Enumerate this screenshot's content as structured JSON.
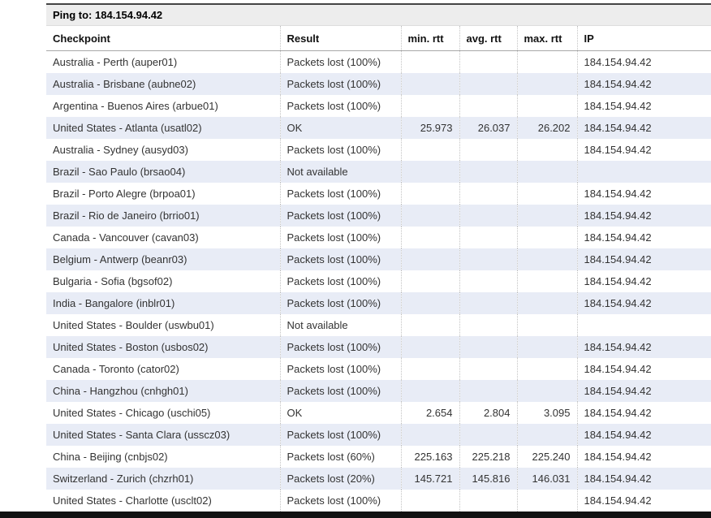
{
  "header": {
    "label": "Ping to:",
    "target": "184.154.94.42"
  },
  "table": {
    "columns": [
      {
        "key": "checkpoint",
        "label": "Checkpoint"
      },
      {
        "key": "result",
        "label": "Result"
      },
      {
        "key": "min",
        "label": "min. rtt"
      },
      {
        "key": "avg",
        "label": "avg. rtt"
      },
      {
        "key": "max",
        "label": "max. rtt"
      },
      {
        "key": "ip",
        "label": "IP"
      }
    ],
    "rows": [
      {
        "checkpoint": "Australia - Perth (auper01)",
        "result": "Packets lost (100%)",
        "min": "",
        "avg": "",
        "max": "",
        "ip": "184.154.94.42"
      },
      {
        "checkpoint": "Australia - Brisbane (aubne02)",
        "result": "Packets lost (100%)",
        "min": "",
        "avg": "",
        "max": "",
        "ip": "184.154.94.42"
      },
      {
        "checkpoint": "Argentina - Buenos Aires (arbue01)",
        "result": "Packets lost (100%)",
        "min": "",
        "avg": "",
        "max": "",
        "ip": "184.154.94.42"
      },
      {
        "checkpoint": "United States - Atlanta (usatl02)",
        "result": "OK",
        "min": "25.973",
        "avg": "26.037",
        "max": "26.202",
        "ip": "184.154.94.42"
      },
      {
        "checkpoint": "Australia - Sydney (ausyd03)",
        "result": "Packets lost (100%)",
        "min": "",
        "avg": "",
        "max": "",
        "ip": "184.154.94.42"
      },
      {
        "checkpoint": "Brazil - Sao Paulo (brsao04)",
        "result": "Not available",
        "min": "",
        "avg": "",
        "max": "",
        "ip": ""
      },
      {
        "checkpoint": "Brazil - Porto Alegre (brpoa01)",
        "result": "Packets lost (100%)",
        "min": "",
        "avg": "",
        "max": "",
        "ip": "184.154.94.42"
      },
      {
        "checkpoint": "Brazil - Rio de Janeiro (brrio01)",
        "result": "Packets lost (100%)",
        "min": "",
        "avg": "",
        "max": "",
        "ip": "184.154.94.42"
      },
      {
        "checkpoint": "Canada - Vancouver (cavan03)",
        "result": "Packets lost (100%)",
        "min": "",
        "avg": "",
        "max": "",
        "ip": "184.154.94.42"
      },
      {
        "checkpoint": "Belgium - Antwerp (beanr03)",
        "result": "Packets lost (100%)",
        "min": "",
        "avg": "",
        "max": "",
        "ip": "184.154.94.42"
      },
      {
        "checkpoint": "Bulgaria - Sofia (bgsof02)",
        "result": "Packets lost (100%)",
        "min": "",
        "avg": "",
        "max": "",
        "ip": "184.154.94.42"
      },
      {
        "checkpoint": "India - Bangalore (inblr01)",
        "result": "Packets lost (100%)",
        "min": "",
        "avg": "",
        "max": "",
        "ip": "184.154.94.42"
      },
      {
        "checkpoint": "United States - Boulder (uswbu01)",
        "result": "Not available",
        "min": "",
        "avg": "",
        "max": "",
        "ip": ""
      },
      {
        "checkpoint": "United States - Boston (usbos02)",
        "result": "Packets lost (100%)",
        "min": "",
        "avg": "",
        "max": "",
        "ip": "184.154.94.42"
      },
      {
        "checkpoint": "Canada - Toronto (cator02)",
        "result": "Packets lost (100%)",
        "min": "",
        "avg": "",
        "max": "",
        "ip": "184.154.94.42"
      },
      {
        "checkpoint": "China - Hangzhou (cnhgh01)",
        "result": "Packets lost (100%)",
        "min": "",
        "avg": "",
        "max": "",
        "ip": "184.154.94.42"
      },
      {
        "checkpoint": "United States - Chicago (uschi05)",
        "result": "OK",
        "min": "2.654",
        "avg": "2.804",
        "max": "3.095",
        "ip": "184.154.94.42"
      },
      {
        "checkpoint": "United States - Santa Clara (usscz03)",
        "result": "Packets lost (100%)",
        "min": "",
        "avg": "",
        "max": "",
        "ip": "184.154.94.42"
      },
      {
        "checkpoint": "China - Beijing (cnbjs02)",
        "result": "Packets lost (60%)",
        "min": "225.163",
        "avg": "225.218",
        "max": "225.240",
        "ip": "184.154.94.42"
      },
      {
        "checkpoint": "Switzerland - Zurich (chzrh01)",
        "result": "Packets lost (20%)",
        "min": "145.721",
        "avg": "145.816",
        "max": "146.031",
        "ip": "184.154.94.42"
      },
      {
        "checkpoint": "United States - Charlotte (usclt02)",
        "result": "Packets lost (100%)",
        "min": "",
        "avg": "",
        "max": "",
        "ip": "184.154.94.42"
      }
    ]
  },
  "colors": {
    "row_alt": "#e8ecf6",
    "header_bar_bg": "#ededed",
    "top_border": "#444444",
    "bottom_bar": "#111111"
  }
}
